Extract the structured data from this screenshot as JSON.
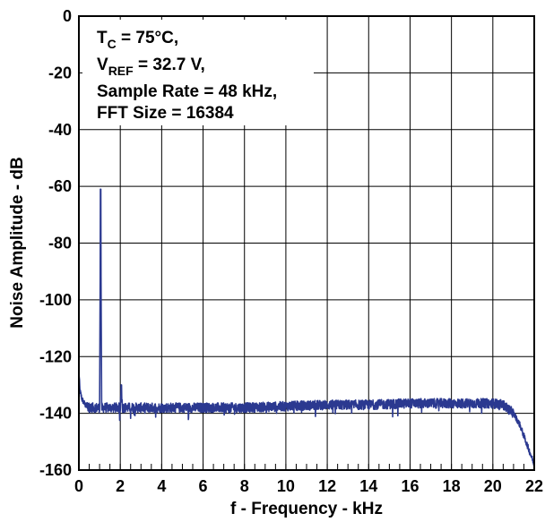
{
  "chart_data": {
    "type": "line",
    "title": "",
    "xlabel": "f - Frequency - kHz",
    "ylabel": "Noise Amplitude - dB",
    "xlim": [
      0,
      22
    ],
    "ylim": [
      -160,
      0
    ],
    "xticks": [
      "0",
      "2",
      "4",
      "6",
      "8",
      "10",
      "12",
      "14",
      "16",
      "18",
      "20",
      "22"
    ],
    "yticks": [
      "0",
      "-20",
      "-40",
      "-60",
      "-80",
      "-100",
      "-120",
      "-140",
      "-160"
    ],
    "grid": true,
    "line_color": "#2b3990",
    "annotation": {
      "line1_main": "T",
      "line1_sub": "C",
      "line1_rest": " = 75°C,",
      "line2_main": "V",
      "line2_sub": "REF",
      "line2_rest": " = 32.7 V,",
      "line3": "Sample Rate = 48 kHz,",
      "line4": "FFT Size = 16384"
    },
    "series": [
      {
        "noise_floor_db": -138,
        "x": [
          0.0,
          0.05,
          0.15,
          0.3,
          0.5,
          0.8,
          1.0,
          1.05,
          1.1,
          1.2,
          1.5,
          1.9,
          2.0,
          2.05,
          2.1,
          3.0,
          4.0,
          6.0,
          8.0,
          10.0,
          12.0,
          14.0,
          16.0,
          18.0,
          20.0,
          20.5,
          21.0,
          21.3,
          21.6,
          21.9,
          22.0
        ],
        "y": [
          -125,
          -132,
          -135,
          -137,
          -138,
          -138,
          -138,
          -61,
          -138,
          -138,
          -138,
          -138,
          -138,
          -130,
          -138,
          -138,
          -138,
          -138,
          -138,
          -137.5,
          -137,
          -137,
          -136.5,
          -136.5,
          -136.5,
          -137,
          -140,
          -144,
          -150,
          -156,
          -158
        ]
      }
    ]
  }
}
